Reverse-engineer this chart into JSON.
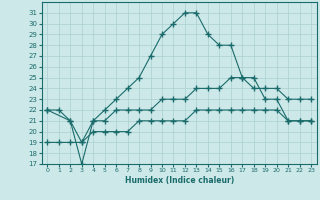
{
  "title": "",
  "xlabel": "Humidex (Indice chaleur)",
  "background_color": "#cde8e8",
  "grid_color": "#aacfcf",
  "line_color": "#1a6b6b",
  "xlim": [
    -0.5,
    23.5
  ],
  "ylim": [
    17,
    32
  ],
  "xticks": [
    0,
    1,
    2,
    3,
    4,
    5,
    6,
    7,
    8,
    9,
    10,
    11,
    12,
    13,
    14,
    15,
    16,
    17,
    18,
    19,
    20,
    21,
    22,
    23
  ],
  "yticks": [
    17,
    18,
    19,
    20,
    21,
    22,
    23,
    24,
    25,
    26,
    27,
    28,
    29,
    30,
    31
  ],
  "line1_x": [
    0,
    1,
    2,
    3,
    4,
    5,
    6,
    7,
    8,
    9,
    10,
    11,
    12,
    13,
    14,
    15,
    16,
    17,
    18,
    19,
    20,
    21,
    22,
    23
  ],
  "line1_y": [
    22,
    22,
    21,
    17,
    21,
    22,
    23,
    24,
    25,
    27,
    29,
    30,
    31,
    31,
    29,
    28,
    28,
    25,
    25,
    23,
    23,
    21,
    21,
    21
  ],
  "line2_x": [
    0,
    2,
    3,
    4,
    5,
    6,
    7,
    8,
    9,
    10,
    11,
    12,
    13,
    14,
    15,
    16,
    17,
    18,
    19,
    20,
    21,
    22,
    23
  ],
  "line2_y": [
    22,
    21,
    19,
    21,
    21,
    22,
    22,
    22,
    22,
    23,
    23,
    23,
    24,
    24,
    24,
    25,
    25,
    24,
    24,
    24,
    23,
    23,
    23
  ],
  "line3_x": [
    0,
    1,
    2,
    3,
    4,
    5,
    6,
    7,
    8,
    9,
    10,
    11,
    12,
    13,
    14,
    15,
    16,
    17,
    18,
    19,
    20,
    21,
    22,
    23
  ],
  "line3_y": [
    19,
    19,
    19,
    19,
    20,
    20,
    20,
    20,
    21,
    21,
    21,
    21,
    21,
    22,
    22,
    22,
    22,
    22,
    22,
    22,
    22,
    21,
    21,
    21
  ]
}
